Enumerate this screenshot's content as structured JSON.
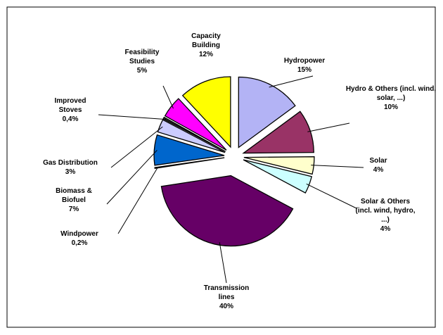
{
  "chart_data": {
    "type": "pie",
    "categories": [
      "Hydropower",
      "Hydro & Others (incl. wind, solar, ...)",
      "Solar",
      "Solar & Others (incl. wind, hydro, ...)",
      "Transmission lines",
      "Windpower",
      "Biomass & Biofuel",
      "Gas Distribution",
      "Improved Stoves",
      "Feasibility Studies",
      "Capacity Building"
    ],
    "values": [
      15,
      10,
      4,
      4,
      40,
      0.2,
      7,
      3,
      0.4,
      5,
      12
    ],
    "value_labels": [
      "15%",
      "10%",
      "4%",
      "4%",
      "40%",
      "0,2%",
      "7%",
      "3%",
      "0,4%",
      "5%",
      "12%"
    ],
    "colors": [
      "#b3b3f5",
      "#993366",
      "#ffffcc",
      "#ccffff",
      "#660066",
      "#ff9999",
      "#0066cc",
      "#ccccff",
      "#333333",
      "#ff00ff",
      "#ffff00"
    ]
  }
}
